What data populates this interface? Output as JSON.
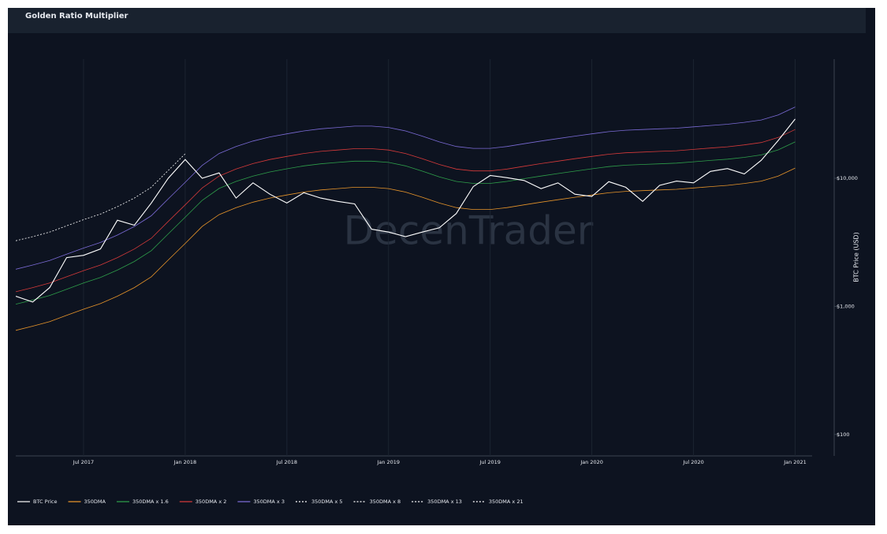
{
  "chart_data": {
    "type": "line",
    "title": "Golden Ratio Multiplier",
    "watermark": "DecenTrader",
    "ylabel": "BTC Price (USD)",
    "log_y": true,
    "grid": true,
    "legend": "bottom",
    "x": [
      "2017-03",
      "2017-04",
      "2017-05",
      "2017-06",
      "2017-07",
      "2017-08",
      "2017-09",
      "2017-10",
      "2017-11",
      "2017-12",
      "2018-01",
      "2018-02",
      "2018-03",
      "2018-04",
      "2018-05",
      "2018-06",
      "2018-07",
      "2018-08",
      "2018-09",
      "2018-10",
      "2018-11",
      "2018-12",
      "2019-01",
      "2019-02",
      "2019-03",
      "2019-04",
      "2019-05",
      "2019-06",
      "2019-07",
      "2019-08",
      "2019-09",
      "2019-10",
      "2019-11",
      "2019-12",
      "2020-01",
      "2020-02",
      "2020-03",
      "2020-04",
      "2020-05",
      "2020-06",
      "2020-07",
      "2020-08",
      "2020-09",
      "2020-10",
      "2020-11",
      "2020-12",
      "2021-01"
    ],
    "xlim": [
      "2017-03",
      "2021-02"
    ],
    "xticks": [
      {
        "value": "2017-07",
        "label": "Jul 2017"
      },
      {
        "value": "2018-01",
        "label": "Jan 2018"
      },
      {
        "value": "2018-07",
        "label": "Jul 2018"
      },
      {
        "value": "2019-01",
        "label": "Jan 2019"
      },
      {
        "value": "2019-07",
        "label": "Jul 2019"
      },
      {
        "value": "2020-01",
        "label": "Jan 2020"
      },
      {
        "value": "2020-07",
        "label": "Jul 2020"
      },
      {
        "value": "2021-01",
        "label": "Jan 2021"
      }
    ],
    "ylim": [
      68,
      85000
    ],
    "yticks": [
      {
        "value": 100,
        "label": "$100"
      },
      {
        "value": 1000,
        "label": "$1,000"
      },
      {
        "value": 10000,
        "label": "$10,000"
      }
    ],
    "series": [
      {
        "name": "BTC Price",
        "color": "#ffffff",
        "values": [
          1200,
          1080,
          1400,
          2400,
          2500,
          2800,
          4700,
          4300,
          6400,
          10000,
          14000,
          10000,
          11000,
          7000,
          9200,
          7500,
          6400,
          7700,
          7000,
          6600,
          6300,
          4000,
          3800,
          3500,
          3800,
          4100,
          5300,
          8600,
          10500,
          10100,
          9600,
          8300,
          9200,
          7500,
          7200,
          9400,
          8500,
          6600,
          8800,
          9500,
          9200,
          11300,
          11900,
          10800,
          13800,
          19700,
          29000
        ]
      },
      {
        "name": "350DMA",
        "color": "#e8952a",
        "values": [
          650,
          700,
          760,
          850,
          950,
          1050,
          1200,
          1400,
          1700,
          2300,
          3100,
          4200,
          5200,
          5900,
          6500,
          7000,
          7400,
          7800,
          8100,
          8300,
          8500,
          8500,
          8300,
          7800,
          7100,
          6400,
          5900,
          5700,
          5700,
          5900,
          6200,
          6500,
          6800,
          7100,
          7400,
          7700,
          7900,
          8000,
          8100,
          8200,
          8400,
          8600,
          8800,
          9100,
          9500,
          10400,
          12000
        ]
      },
      {
        "name": "350DMA x 1.6",
        "color": "#2e9e4a",
        "values": [
          1040,
          1120,
          1216,
          1360,
          1520,
          1680,
          1920,
          2240,
          2720,
          3680,
          4960,
          6720,
          8320,
          9440,
          10400,
          11200,
          11840,
          12480,
          12960,
          13280,
          13600,
          13600,
          13280,
          12480,
          11360,
          10240,
          9440,
          9120,
          9120,
          9440,
          9920,
          10400,
          10880,
          11360,
          11840,
          12320,
          12640,
          12800,
          12960,
          13120,
          13440,
          13760,
          14080,
          14560,
          15200,
          16640,
          19200
        ]
      },
      {
        "name": "350DMA x 2",
        "color": "#d63a3a",
        "values": [
          1300,
          1400,
          1520,
          1700,
          1900,
          2100,
          2400,
          2800,
          3400,
          4600,
          6200,
          8400,
          10400,
          11800,
          13000,
          14000,
          14800,
          15600,
          16200,
          16600,
          17000,
          17000,
          16600,
          15600,
          14200,
          12800,
          11800,
          11400,
          11400,
          11800,
          12400,
          13000,
          13600,
          14200,
          14800,
          15400,
          15800,
          16000,
          16200,
          16400,
          16800,
          17200,
          17600,
          18200,
          19000,
          20800,
          24000
        ]
      },
      {
        "name": "350DMA x 3",
        "color": "#7b6bd6",
        "values": [
          1950,
          2100,
          2280,
          2550,
          2850,
          3150,
          3600,
          4200,
          5100,
          6900,
          9300,
          12600,
          15600,
          17700,
          19500,
          21000,
          22200,
          23400,
          24300,
          24900,
          25500,
          25500,
          24900,
          23400,
          21300,
          19200,
          17700,
          17100,
          17100,
          17700,
          18600,
          19500,
          20400,
          21300,
          22200,
          23100,
          23700,
          24000,
          24300,
          24600,
          25200,
          25800,
          26400,
          27300,
          28500,
          31200,
          36000
        ]
      },
      {
        "name": "350DMA x 5",
        "color": "#ffffff",
        "dash": true,
        "values": [
          3250,
          3500,
          3800,
          4250,
          4750,
          5250,
          6000,
          7000,
          8500,
          11500,
          15500,
          null,
          null,
          null,
          null,
          null,
          null,
          null,
          null,
          null,
          null,
          null,
          null,
          null,
          null,
          null,
          null,
          null,
          null,
          null,
          null,
          null,
          null,
          null,
          null,
          null,
          null,
          null,
          null,
          null,
          null,
          null,
          null,
          null,
          null,
          null,
          null
        ]
      },
      {
        "name": "350DMA x 8",
        "color": "#ffffff",
        "dash": true,
        "values": [
          null,
          null,
          null,
          null,
          null,
          null,
          null,
          null,
          null,
          null,
          null,
          null,
          null,
          null,
          null,
          null,
          null,
          null,
          null,
          null,
          null,
          null,
          null,
          null,
          null,
          null,
          null,
          null,
          null,
          null,
          null,
          null,
          null,
          null,
          null,
          null,
          null,
          null,
          null,
          null,
          null,
          null,
          null,
          null,
          null,
          null,
          null
        ]
      },
      {
        "name": "350DMA x 13",
        "color": "#ffffff",
        "dash": true,
        "values": [
          null,
          null,
          null,
          null,
          null,
          null,
          null,
          null,
          null,
          null,
          null,
          null,
          null,
          null,
          null,
          null,
          null,
          null,
          null,
          null,
          null,
          null,
          null,
          null,
          null,
          null,
          null,
          null,
          null,
          null,
          null,
          null,
          null,
          null,
          null,
          null,
          null,
          null,
          null,
          null,
          null,
          null,
          null,
          null,
          null,
          null,
          null
        ]
      },
      {
        "name": "350DMA x 21",
        "color": "#ffffff",
        "dash": true,
        "values": [
          null,
          null,
          null,
          null,
          null,
          null,
          null,
          null,
          null,
          null,
          null,
          null,
          null,
          null,
          null,
          null,
          null,
          null,
          null,
          null,
          null,
          null,
          null,
          null,
          null,
          null,
          null,
          null,
          null,
          null,
          null,
          null,
          null,
          null,
          null,
          null,
          null,
          null,
          null,
          null,
          null,
          null,
          null,
          null,
          null,
          null,
          null
        ]
      }
    ]
  }
}
